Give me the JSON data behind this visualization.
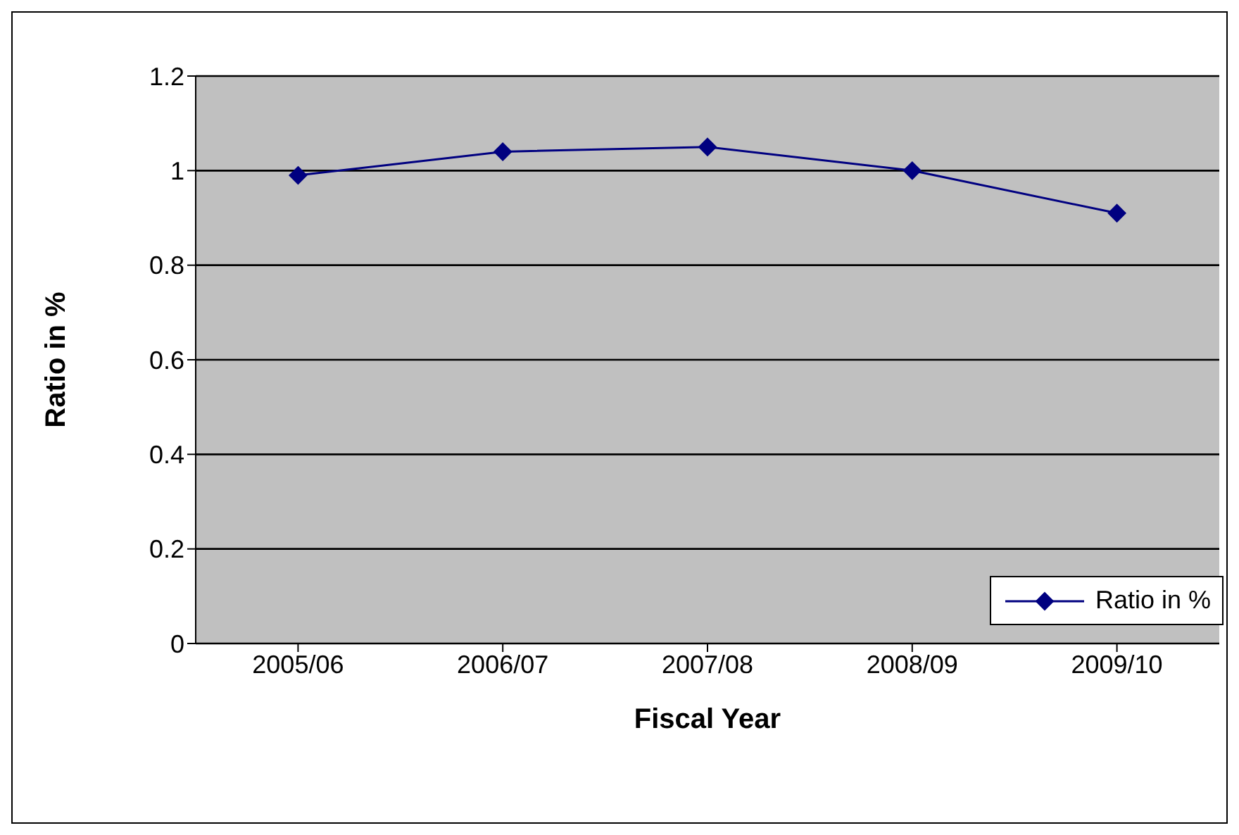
{
  "chart_data": {
    "type": "line",
    "xlabel": "Fiscal Year",
    "ylabel": "Ratio in %",
    "categories": [
      "2005/06",
      "2006/07",
      "2007/08",
      "2008/09",
      "2009/10"
    ],
    "series": [
      {
        "name": "Ratio in %",
        "color": "#000080",
        "values": [
          0.99,
          1.04,
          1.05,
          1.0,
          0.91
        ]
      }
    ],
    "ylim": [
      0,
      1.2
    ],
    "yticks": [
      0,
      0.2,
      0.4,
      0.6,
      0.8,
      1,
      1.2
    ],
    "grid": "y",
    "legend": "bottom right",
    "marker": "diamond",
    "line_style": "solid"
  }
}
